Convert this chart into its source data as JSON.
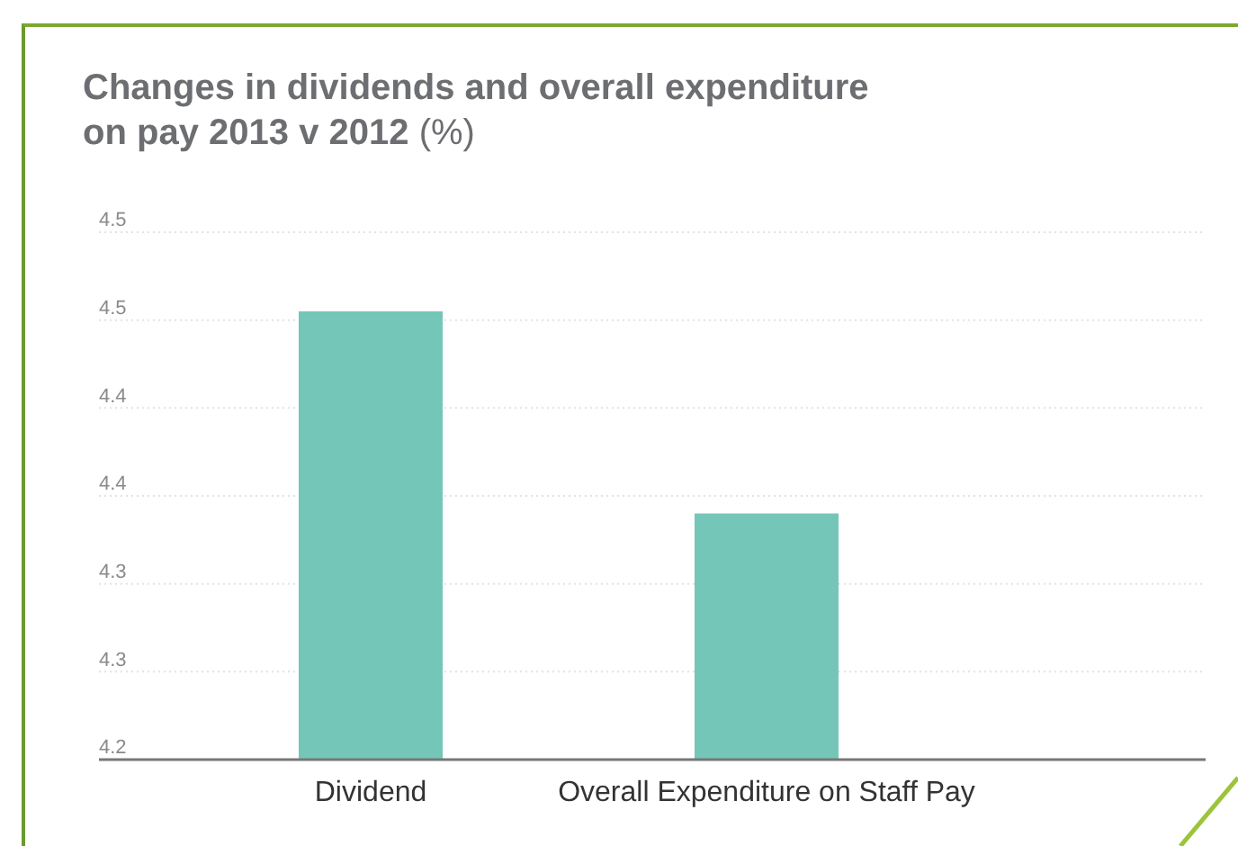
{
  "chart_data": {
    "type": "bar",
    "title": "Changes in dividends and overall expenditure on pay 2013 v 2012 (%)",
    "categories": [
      "Dividend",
      "Overall Expenditure on Staff Pay"
    ],
    "values": [
      4.455,
      4.34
    ],
    "color": "#74c6b8",
    "ylim": [
      4.2,
      4.5
    ],
    "yticks": [
      {
        "value": 4.2,
        "label": "4.2"
      },
      {
        "value": 4.25,
        "label": "4.3"
      },
      {
        "value": 4.3,
        "label": "4.3"
      },
      {
        "value": 4.35,
        "label": "4.4"
      },
      {
        "value": 4.4,
        "label": "4.4"
      },
      {
        "value": 4.45,
        "label": "4.5"
      },
      {
        "value": 4.5,
        "label": "4.5"
      }
    ],
    "grid": "y"
  }
}
